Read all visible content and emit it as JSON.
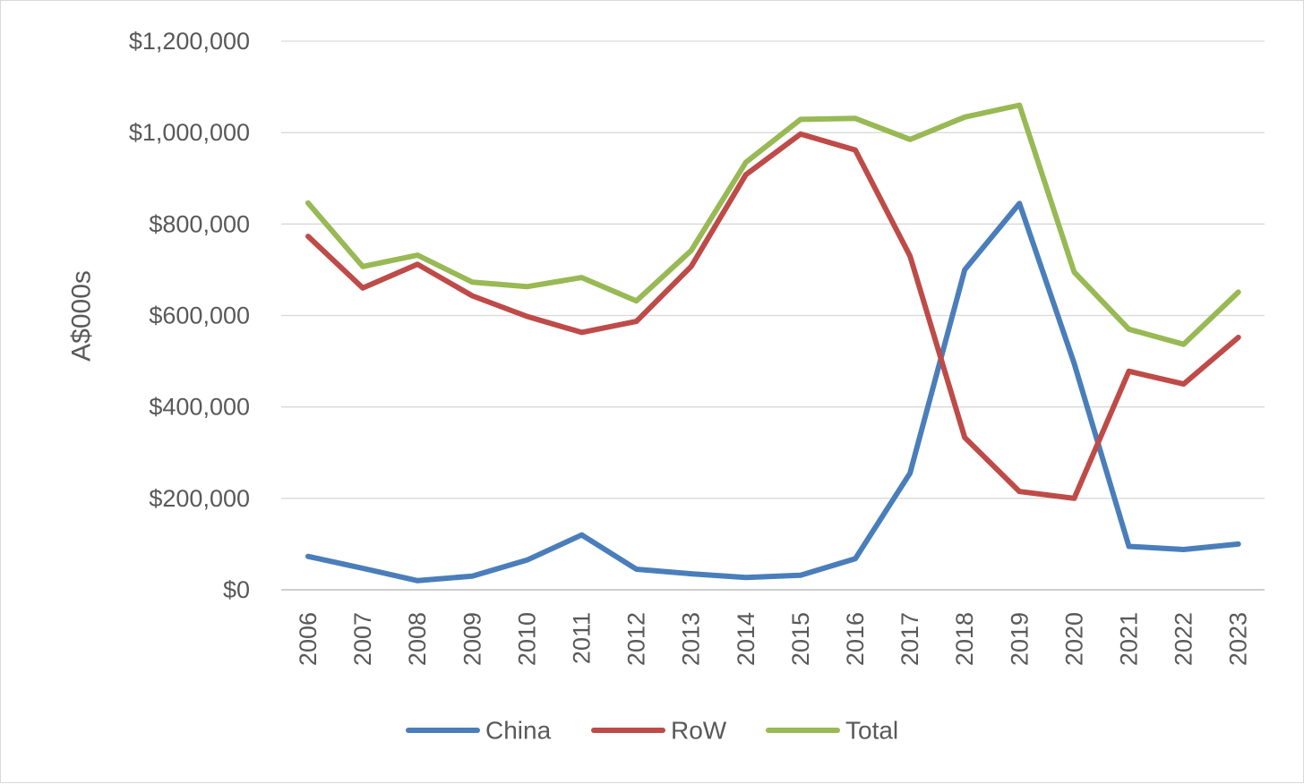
{
  "chart_data": {
    "type": "line",
    "title": "",
    "xlabel": "",
    "ylabel": "A$000s",
    "categories": [
      "2006",
      "2007",
      "2008",
      "2009",
      "2010",
      "2011",
      "2012",
      "2013",
      "2014",
      "2015",
      "2016",
      "2017",
      "2018",
      "2019",
      "2020",
      "2021",
      "2022",
      "2023"
    ],
    "series": [
      {
        "name": "China",
        "color": "#4a7ebb",
        "values": [
          73000,
          47000,
          20000,
          30000,
          65000,
          120000,
          45000,
          35000,
          27000,
          32000,
          68000,
          255000,
          700000,
          845000,
          495000,
          95000,
          88000,
          100000
        ]
      },
      {
        "name": "RoW",
        "color": "#be4b48",
        "values": [
          773000,
          660000,
          712000,
          643000,
          598000,
          563000,
          587000,
          707000,
          908000,
          997000,
          962000,
          730000,
          333000,
          215000,
          200000,
          478000,
          450000,
          552000
        ]
      },
      {
        "name": "Total",
        "color": "#98b954",
        "values": [
          846000,
          707000,
          732000,
          673000,
          663000,
          683000,
          632000,
          742000,
          935000,
          1029000,
          1031000,
          985000,
          1034000,
          1060000,
          695000,
          570000,
          537000,
          651000
        ]
      }
    ],
    "ylim": [
      0,
      1200000
    ],
    "yticks": [
      {
        "value": 0,
        "label": "$0"
      },
      {
        "value": 200000,
        "label": "$200,000"
      },
      {
        "value": 400000,
        "label": "$400,000"
      },
      {
        "value": 600000,
        "label": "$600,000"
      },
      {
        "value": 800000,
        "label": "$800,000"
      },
      {
        "value": 1000000,
        "label": "$1,000,000"
      },
      {
        "value": 1200000,
        "label": "$1,200,000"
      }
    ],
    "grid": true,
    "legend_position": "bottom"
  }
}
